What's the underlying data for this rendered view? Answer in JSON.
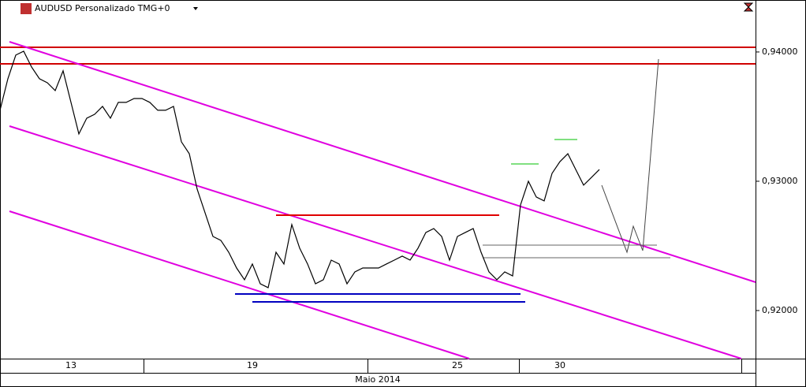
{
  "chart_data": {
    "type": "line",
    "title": "AUDUSD Personalizado TMG+0",
    "x_label": "Maio 2014",
    "categories": [
      null,
      null,
      null,
      null,
      null,
      null,
      null,
      null,
      null,
      "13",
      null,
      null,
      null,
      null,
      null,
      null,
      null,
      null,
      null,
      null,
      null,
      null,
      null,
      null,
      null,
      null,
      null,
      null,
      null,
      null,
      null,
      null,
      "19",
      null,
      null,
      null,
      null,
      null,
      null,
      null,
      null,
      null,
      null,
      null,
      null,
      null,
      null,
      null,
      null,
      null,
      null,
      null,
      null,
      null,
      null,
      null,
      null,
      null,
      "25",
      null,
      null,
      null,
      null,
      null,
      null,
      null,
      null,
      null,
      null,
      null,
      null,
      "30",
      null,
      null,
      null,
      null,
      null
    ],
    "values": [
      0.93549,
      0.93793,
      0.93976,
      0.94006,
      0.93884,
      0.93793,
      0.93762,
      0.93701,
      0.93854,
      0.9361,
      0.93366,
      0.93488,
      0.93518,
      0.93579,
      0.93488,
      0.9361,
      0.9361,
      0.9364,
      0.9364,
      0.9361,
      0.93549,
      0.93549,
      0.93579,
      0.93305,
      0.93213,
      0.92939,
      0.92756,
      0.92573,
      0.92543,
      0.92451,
      0.92329,
      0.92238,
      0.9236,
      0.92207,
      0.92177,
      0.92451,
      0.9236,
      0.92665,
      0.92482,
      0.9236,
      0.92207,
      0.92238,
      0.9239,
      0.9236,
      0.92207,
      0.92299,
      0.92329,
      0.92329,
      0.92329,
      0.9236,
      0.9239,
      0.92421,
      0.9239,
      0.92482,
      0.92604,
      0.92634,
      0.92573,
      0.9239,
      0.92573,
      0.92604,
      0.92634,
      0.92451,
      0.92299,
      0.92238,
      0.92299,
      0.92268,
      0.92817,
      0.93,
      0.92878,
      0.92848,
      0.93061,
      0.93152,
      0.93213,
      0.93091,
      0.9297,
      0.9303,
      0.93091
    ],
    "color": "#000000",
    "ylim": [
      0.91628,
      0.94402
    ],
    "yticks": [
      {
        "value": 0.92,
        "label": "0,92000"
      },
      {
        "value": 0.93,
        "label": "0,93000"
      },
      {
        "value": 0.94,
        "label": "0,94000"
      }
    ]
  }
}
